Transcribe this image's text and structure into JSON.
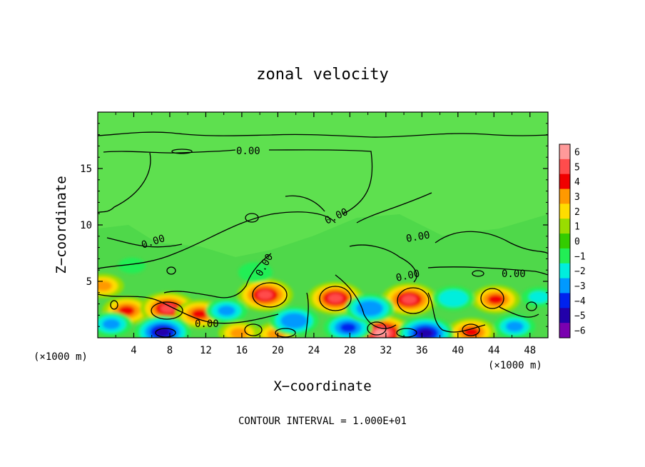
{
  "chart_data": {
    "type": "heatmap",
    "title": "zonal velocity",
    "xlabel": "X−coordinate",
    "ylabel": "Z−coordinate",
    "x_unit_left": "(×1000 m)",
    "x_unit_right": "(×1000 m)",
    "xlim": [
      0,
      50
    ],
    "ylim": [
      0,
      20
    ],
    "xticks": [
      4,
      8,
      12,
      16,
      20,
      24,
      28,
      32,
      36,
      40,
      44,
      48
    ],
    "yticks": [
      5,
      10,
      15
    ],
    "colorbar": {
      "levels": [
        6,
        5,
        4,
        3,
        2,
        1,
        0,
        -1,
        -2,
        -3,
        -4,
        -5,
        -6
      ],
      "labels": [
        "6",
        "5",
        "4",
        "3",
        "2",
        "1",
        "0",
        "−1",
        "−2",
        "−3",
        "−4",
        "−5",
        "−6"
      ],
      "colors": [
        "#ff9a9a",
        "#ff4c4c",
        "#f00000",
        "#ff9900",
        "#ffdd00",
        "#99dd00",
        "#33cc00",
        "#22ee55",
        "#00eedd",
        "#0099ff",
        "#0022ee",
        "#2200aa",
        "#7a00b0"
      ]
    },
    "background_value": 0,
    "contour_labels": [
      "0.00",
      "0.00",
      "0.00",
      "0.00",
      "0.00",
      "0.00",
      "0.00",
      "0.00",
      "0.00"
    ],
    "features": [
      {
        "kind": "max",
        "x": 3.2,
        "z": 2.4,
        "value": 4
      },
      {
        "kind": "max",
        "x": 0.6,
        "z": 4.6,
        "value": 3
      },
      {
        "kind": "max",
        "x": 7.8,
        "z": 2.6,
        "value": 4.5
      },
      {
        "kind": "max",
        "x": 11.3,
        "z": 2.1,
        "value": 3.5
      },
      {
        "kind": "max",
        "x": 18.6,
        "z": 3.8,
        "value": 5
      },
      {
        "kind": "max",
        "x": 26.4,
        "z": 3.5,
        "value": 4.5
      },
      {
        "kind": "max",
        "x": 34.6,
        "z": 3.4,
        "value": 5
      },
      {
        "kind": "max",
        "x": 44.2,
        "z": 3.4,
        "value": 4
      },
      {
        "kind": "max",
        "x": 31.5,
        "z": 0.4,
        "value": 6
      },
      {
        "kind": "max",
        "x": 19.8,
        "z": 0.3,
        "value": 3
      },
      {
        "kind": "max",
        "x": 41.5,
        "z": 0.5,
        "value": 4
      },
      {
        "kind": "max",
        "x": 15.7,
        "z": 0.4,
        "value": 3
      },
      {
        "kind": "min",
        "x": 1.5,
        "z": 1.2,
        "value": -3
      },
      {
        "kind": "min",
        "x": 7.2,
        "z": 0.5,
        "value": -5
      },
      {
        "kind": "min",
        "x": 14.3,
        "z": 2.4,
        "value": -3
      },
      {
        "kind": "min",
        "x": 21.8,
        "z": 1.5,
        "value": -3.5
      },
      {
        "kind": "min",
        "x": 27.8,
        "z": 0.9,
        "value": -4
      },
      {
        "kind": "min",
        "x": 30.2,
        "z": 2.6,
        "value": -3.5
      },
      {
        "kind": "min",
        "x": 36.4,
        "z": 0.4,
        "value": -5
      },
      {
        "kind": "min",
        "x": 39.5,
        "z": 3.5,
        "value": -2.5
      },
      {
        "kind": "min",
        "x": 46.3,
        "z": 1.0,
        "value": -3
      },
      {
        "kind": "min",
        "x": 49.0,
        "z": 3.6,
        "value": -2
      },
      {
        "kind": "min",
        "x": 17.5,
        "z": 5.8,
        "value": -1.5
      },
      {
        "kind": "min",
        "x": 3.8,
        "z": 6.4,
        "value": -1
      }
    ]
  },
  "footnote": "CONTOUR INTERVAL =  1.000E+01"
}
